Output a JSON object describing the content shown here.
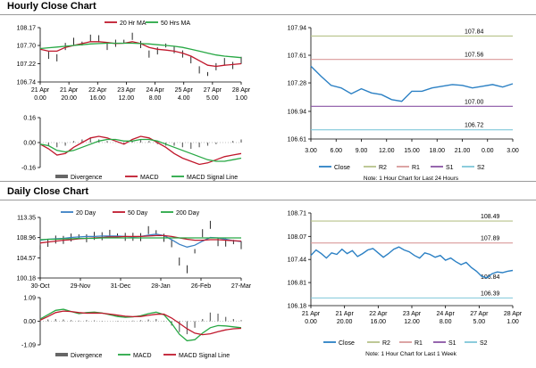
{
  "sections": {
    "hourly": {
      "title": "Hourly Close Chart"
    },
    "daily": {
      "title": "Daily Close Chart"
    }
  },
  "colors": {
    "price": "#111111",
    "ma_short": "#c0182c",
    "ma_long": "#27a844",
    "ma_mid": "#c0182c",
    "ma_fast": "#3a7fc4",
    "macd": "#c0182c",
    "signal": "#27a844",
    "divergence": "#666666",
    "close": "#2b80c4",
    "r2": "#b7c28a",
    "r1": "#d99a9a",
    "s1": "#8a55a5",
    "s2": "#7fc7d9",
    "axis": "#000000"
  },
  "chart_data": [
    {
      "id": "hourly-price",
      "type": "line",
      "title": "",
      "legend": [
        "20 Hr MA",
        "50 Hrs MA"
      ],
      "yticks": [
        "108.17",
        "107.70",
        "107.22",
        "106.74"
      ],
      "ylim": [
        106.74,
        108.17
      ],
      "xticks": [
        "21 Apr\n0.00",
        "21 Apr\n20.00",
        "22 Apr\n16.00",
        "23 Apr\n12.00",
        "24 Apr\n8.00",
        "25 Apr\n4.00",
        "27 Apr\n5.00",
        "28 Apr\n1.00"
      ],
      "series": [
        {
          "name": "Price",
          "values": [
            107.75,
            107.45,
            107.35,
            107.7,
            107.8,
            107.75,
            107.9,
            107.85,
            107.7,
            107.75,
            107.8,
            107.95,
            107.7,
            107.5,
            107.55,
            107.7,
            107.6,
            107.45,
            107.35,
            107.05,
            106.95,
            107.15,
            107.25,
            107.2,
            107.3
          ]
        },
        {
          "name": "20 Hr MA",
          "values": [
            107.6,
            107.55,
            107.55,
            107.65,
            107.7,
            107.75,
            107.8,
            107.8,
            107.78,
            107.75,
            107.76,
            107.8,
            107.75,
            107.65,
            107.6,
            107.58,
            107.55,
            107.5,
            107.42,
            107.3,
            107.18,
            107.15,
            107.18,
            107.2,
            107.22
          ]
        },
        {
          "name": "50 Hrs MA",
          "values": [
            107.62,
            107.64,
            107.66,
            107.68,
            107.7,
            107.72,
            107.74,
            107.75,
            107.76,
            107.76,
            107.76,
            107.76,
            107.75,
            107.74,
            107.72,
            107.7,
            107.68,
            107.65,
            107.6,
            107.55,
            107.5,
            107.45,
            107.42,
            107.4,
            107.38
          ]
        }
      ]
    },
    {
      "id": "hourly-macd",
      "type": "line",
      "legend": [
        "Divergence",
        "MACD",
        "MACD Signal Line"
      ],
      "yticks": [
        "0.16",
        "0.00",
        "-0.16"
      ],
      "ylim": [
        -0.16,
        0.16
      ],
      "divergence": [
        0.0,
        -0.02,
        -0.03,
        -0.02,
        0.01,
        0.02,
        0.03,
        0.02,
        0.01,
        0.0,
        -0.01,
        0.01,
        0.02,
        0.01,
        -0.01,
        -0.02,
        -0.02,
        -0.03,
        -0.04,
        -0.03,
        -0.02,
        -0.01,
        0.0,
        0.01,
        0.02
      ],
      "series": [
        {
          "name": "MACD",
          "values": [
            -0.01,
            -0.04,
            -0.08,
            -0.07,
            -0.03,
            0.0,
            0.03,
            0.04,
            0.03,
            0.01,
            -0.01,
            0.02,
            0.04,
            0.03,
            0.0,
            -0.03,
            -0.07,
            -0.1,
            -0.12,
            -0.14,
            -0.13,
            -0.11,
            -0.09,
            -0.08,
            -0.07
          ]
        },
        {
          "name": "MACD Signal Line",
          "values": [
            -0.01,
            -0.02,
            -0.05,
            -0.06,
            -0.05,
            -0.03,
            -0.01,
            0.01,
            0.02,
            0.02,
            0.01,
            0.01,
            0.02,
            0.02,
            0.01,
            -0.01,
            -0.03,
            -0.05,
            -0.07,
            -0.09,
            -0.11,
            -0.12,
            -0.12,
            -0.11,
            -0.1
          ]
        }
      ]
    },
    {
      "id": "hourly-pivot",
      "type": "line",
      "yticks": [
        "107.94",
        "107.61",
        "107.28",
        "106.94",
        "106.61"
      ],
      "ylim": [
        106.61,
        107.94
      ],
      "xticks": [
        "3.00",
        "6.00",
        "9.00",
        "12.00",
        "15.00",
        "18.00",
        "21.00",
        "0.00",
        "3.00"
      ],
      "levels": [
        {
          "name": "R2",
          "value": 107.84,
          "label": "107.84"
        },
        {
          "name": "R1",
          "value": 107.56,
          "label": "107.56"
        },
        {
          "name": "S1",
          "value": 107.0,
          "label": "107.00"
        },
        {
          "name": "S2",
          "value": 106.72,
          "label": "106.72"
        }
      ],
      "series": [
        {
          "name": "Close",
          "values": [
            107.48,
            107.36,
            107.25,
            107.22,
            107.15,
            107.21,
            107.16,
            107.14,
            107.08,
            107.06,
            107.18,
            107.18,
            107.22,
            107.24,
            107.26,
            107.25,
            107.22,
            107.24,
            107.26,
            107.23,
            107.27
          ]
        }
      ],
      "legend": [
        "Close",
        "R2",
        "R1",
        "S1",
        "S2"
      ],
      "note": "Note: 1 Hour Chart for Last 24 Hours"
    },
    {
      "id": "daily-price",
      "type": "line",
      "legend": [
        "20 Day",
        "50 Day",
        "200 Day"
      ],
      "yticks": [
        "113.35",
        "108.96",
        "104.57",
        "100.18"
      ],
      "ylim": [
        100.18,
        113.35
      ],
      "xticks": [
        "30-Oct",
        "29-Nov",
        "31-Dec",
        "28-Jan",
        "26-Feb",
        "27-Mar"
      ],
      "series": [
        {
          "name": "Price",
          "values": [
            106.8,
            107.9,
            108.3,
            108.7,
            108.9,
            109.2,
            108.9,
            109.1,
            109.5,
            109.7,
            109.4,
            109.2,
            108.9,
            109.3,
            110.5,
            110.1,
            109.0,
            107.5,
            104.0,
            102.0,
            106.0,
            110.0,
            111.5,
            108.2,
            107.8,
            108.0,
            107.4
          ]
        },
        {
          "name": "20 Day",
          "values": [
            108.4,
            108.6,
            108.7,
            108.8,
            109.0,
            109.1,
            109.2,
            109.2,
            109.3,
            109.3,
            109.3,
            109.2,
            109.1,
            109.2,
            109.5,
            109.7,
            109.4,
            108.5,
            107.5,
            106.9,
            107.3,
            108.2,
            109.0,
            108.9,
            108.6,
            108.3,
            108.1
          ]
        },
        {
          "name": "50 Day",
          "values": [
            107.8,
            108.0,
            108.2,
            108.4,
            108.5,
            108.7,
            108.8,
            108.9,
            109.0,
            109.1,
            109.1,
            109.2,
            109.2,
            109.2,
            109.3,
            109.4,
            109.4,
            109.2,
            108.9,
            108.6,
            108.4,
            108.4,
            108.5,
            108.5,
            108.4,
            108.3,
            108.2
          ]
        },
        {
          "name": "200 Day",
          "values": [
            108.5,
            108.6,
            108.6,
            108.7,
            108.7,
            108.8,
            108.8,
            108.8,
            108.9,
            108.9,
            108.9,
            108.9,
            108.9,
            108.9,
            108.9,
            108.9,
            108.9,
            108.9,
            108.9,
            108.9,
            108.9,
            108.9,
            108.9,
            108.9,
            108.9,
            108.9,
            108.9
          ]
        }
      ]
    },
    {
      "id": "daily-macd",
      "type": "line",
      "legend": [
        "Divergence",
        "MACD",
        "MACD Signal Line"
      ],
      "yticks": [
        "1.09",
        "0.00",
        "-1.09"
      ],
      "ylim": [
        -1.09,
        1.09
      ],
      "divergence": [
        0.05,
        0.08,
        0.1,
        0.08,
        0.05,
        0.03,
        0.05,
        0.04,
        0.02,
        0.0,
        -0.02,
        0.0,
        0.03,
        0.05,
        0.08,
        0.1,
        0.02,
        -0.2,
        -0.5,
        -0.6,
        -0.3,
        0.1,
        0.4,
        0.35,
        0.2,
        0.1,
        0.05
      ],
      "series": [
        {
          "name": "MACD",
          "values": [
            0.1,
            0.3,
            0.5,
            0.55,
            0.45,
            0.35,
            0.4,
            0.42,
            0.38,
            0.3,
            0.22,
            0.18,
            0.2,
            0.25,
            0.35,
            0.42,
            0.3,
            -0.1,
            -0.6,
            -0.9,
            -0.85,
            -0.55,
            -0.3,
            -0.2,
            -0.22,
            -0.26,
            -0.3
          ]
        },
        {
          "name": "MACD Signal Line",
          "values": [
            0.05,
            0.22,
            0.4,
            0.47,
            0.45,
            0.4,
            0.37,
            0.38,
            0.37,
            0.33,
            0.28,
            0.23,
            0.21,
            0.22,
            0.27,
            0.32,
            0.33,
            0.15,
            -0.1,
            -0.35,
            -0.55,
            -0.62,
            -0.58,
            -0.48,
            -0.4,
            -0.35,
            -0.33
          ]
        }
      ]
    },
    {
      "id": "daily-pivot",
      "type": "line",
      "yticks": [
        "108.71",
        "108.07",
        "107.44",
        "106.81",
        "106.18"
      ],
      "ylim": [
        106.18,
        108.71
      ],
      "xticks": [
        "21 Apr\n0.00",
        "21 Apr\n20.00",
        "22 Apr\n16.00",
        "23 Apr\n12.00",
        "24 Apr\n8.00",
        "27 Apr\n5.00",
        "28 Apr\n1.00"
      ],
      "levels": [
        {
          "name": "R2",
          "value": 108.49,
          "label": "108.49"
        },
        {
          "name": "R1",
          "value": 107.89,
          "label": "107.89"
        },
        {
          "name": "S1",
          "value": 106.84,
          "label": "106.84"
        },
        {
          "name": "S2",
          "value": 106.39,
          "label": "106.39"
        }
      ],
      "series": [
        {
          "name": "Close",
          "values": [
            107.55,
            107.7,
            107.6,
            107.48,
            107.62,
            107.58,
            107.72,
            107.6,
            107.68,
            107.52,
            107.6,
            107.7,
            107.74,
            107.62,
            107.5,
            107.6,
            107.72,
            107.78,
            107.7,
            107.65,
            107.55,
            107.48,
            107.62,
            107.58,
            107.5,
            107.55,
            107.42,
            107.48,
            107.38,
            107.3,
            107.36,
            107.22,
            107.12,
            106.98,
            106.94,
            107.05,
            107.1,
            107.08,
            107.12,
            107.14
          ]
        }
      ],
      "legend": [
        "Close",
        "R2",
        "R1",
        "S1",
        "S2"
      ],
      "note": "Note: 1 Hour Chart for Last 1 Week"
    }
  ]
}
